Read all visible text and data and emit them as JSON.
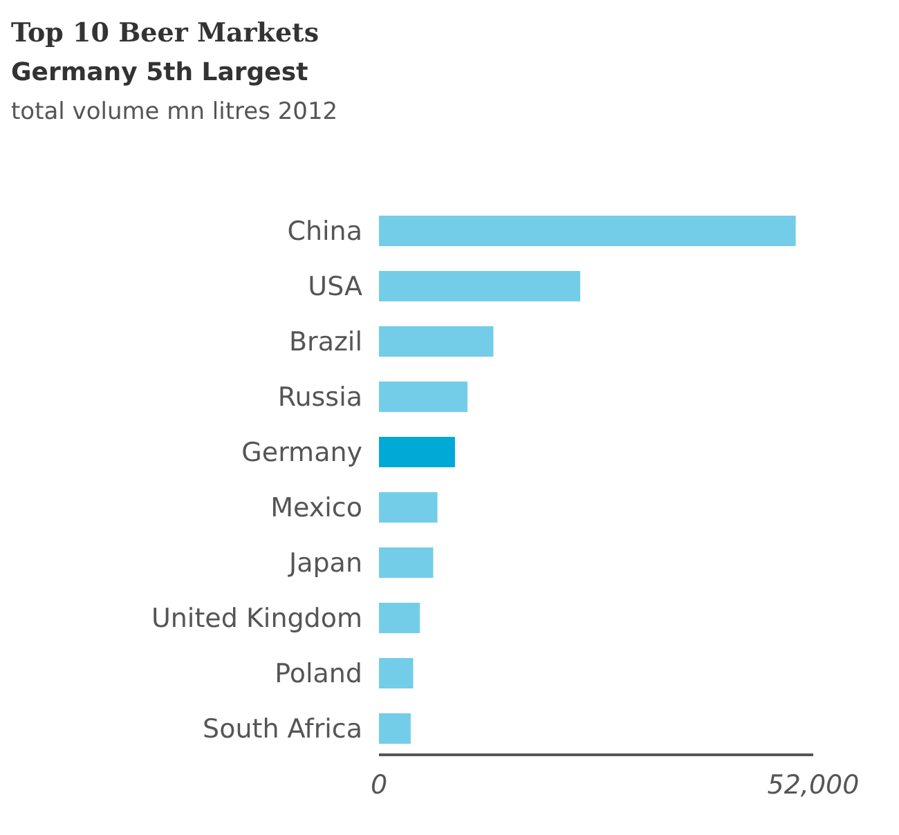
{
  "chart_data": {
    "type": "bar",
    "orientation": "horizontal",
    "title": "Top 10 Beer Markets",
    "subtitle": "Germany 5th Largest",
    "annotations": [
      "total volume mn litres 2012"
    ],
    "categories": [
      "China",
      "USA",
      "Brazil",
      "Russia",
      "Germany",
      "Mexico",
      "Japan",
      "United Kingdom",
      "Poland",
      "South Africa"
    ],
    "values": [
      49900,
      24100,
      13700,
      10600,
      9100,
      7000,
      6500,
      4900,
      4100,
      3800
    ],
    "colors": [
      "#74cde8",
      "#74cde8",
      "#74cde8",
      "#74cde8",
      "#00a9d6",
      "#74cde8",
      "#74cde8",
      "#74cde8",
      "#74cde8",
      "#74cde8"
    ],
    "xlim": [
      0,
      52000
    ],
    "xticks": [
      0,
      {
        "value": 52000,
        "label": "52,000"
      }
    ],
    "grid": false
  }
}
